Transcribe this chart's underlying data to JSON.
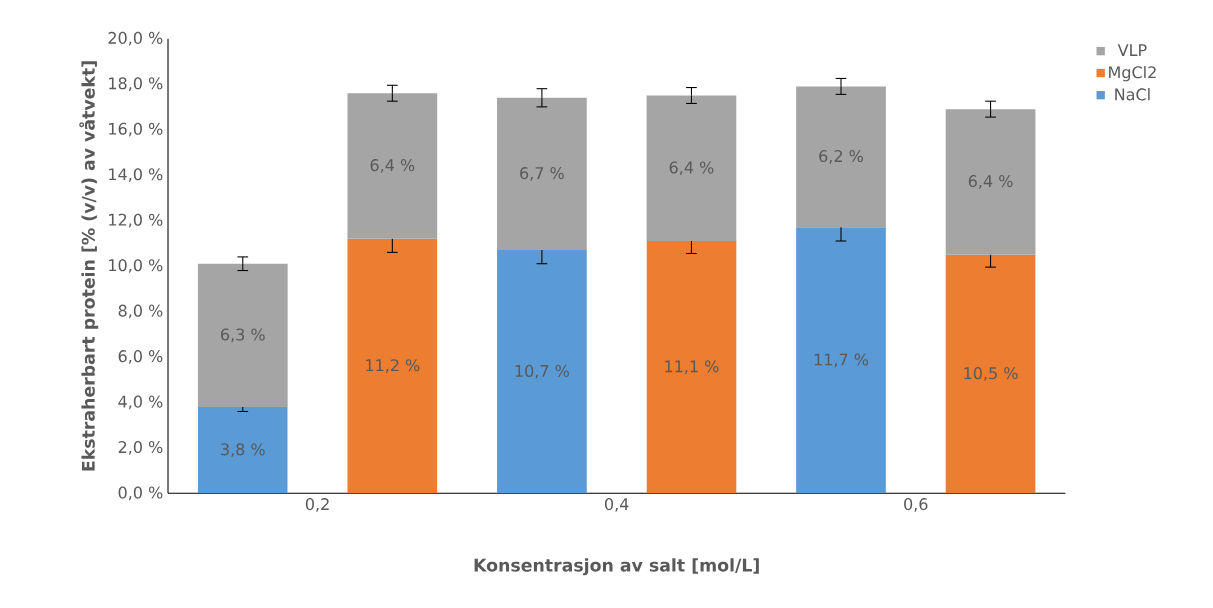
{
  "chart_data": {
    "type": "bar",
    "stacked": true,
    "xlabel": "Konsentrasjon av salt [mol/L]",
    "ylabel": "Ekstraherbart protein [% (v/v) av våtvekt]",
    "categories": [
      "0,2",
      null,
      "0,4",
      null,
      "0,6",
      null
    ],
    "ylim": [
      0,
      20
    ],
    "yticks": [
      {
        "value": 0,
        "label": "0,0 %"
      },
      {
        "value": 2,
        "label": "2,0 %"
      },
      {
        "value": 4,
        "label": "4,0 %"
      },
      {
        "value": 6,
        "label": "6,0 %"
      },
      {
        "value": 8,
        "label": "8,0 %"
      },
      {
        "value": 10,
        "label": "10,0 %"
      },
      {
        "value": 12,
        "label": "12,0 %"
      },
      {
        "value": 14,
        "label": "14,0 %"
      },
      {
        "value": 16,
        "label": "16,0 %"
      },
      {
        "value": 18,
        "label": "18,0 %"
      },
      {
        "value": 20,
        "label": "20,0 %"
      }
    ],
    "legend": "top right",
    "series": [
      {
        "name": "NaCl",
        "color": "#5b9bd5",
        "values": [
          3.8,
          null,
          10.7,
          null,
          11.7,
          null
        ],
        "errors": [
          0.2,
          null,
          0.6,
          null,
          0.6,
          null
        ],
        "value_labels": [
          "3,8 %",
          null,
          "10,7 %",
          null,
          "11,7 %",
          null
        ]
      },
      {
        "name": "MgCl2",
        "color": "#ed7d31",
        "values": [
          null,
          11.2,
          null,
          11.1,
          null,
          10.5
        ],
        "errors": [
          null,
          0.6,
          null,
          0.55,
          null,
          0.55
        ],
        "value_labels": [
          null,
          "11,2 %",
          null,
          "11,1 %",
          null,
          "10,5 %"
        ]
      },
      {
        "name": "VLP",
        "color": "#a5a5a5",
        "values": [
          6.3,
          6.4,
          6.7,
          6.4,
          6.2,
          6.4
        ],
        "errors": [
          0.3,
          0.35,
          0.4,
          0.35,
          0.35,
          0.35
        ],
        "value_labels": [
          "6,3 %",
          "6,4 %",
          "6,7 %",
          "6,4 %",
          "6,2 %",
          "6,4 %"
        ]
      }
    ]
  }
}
